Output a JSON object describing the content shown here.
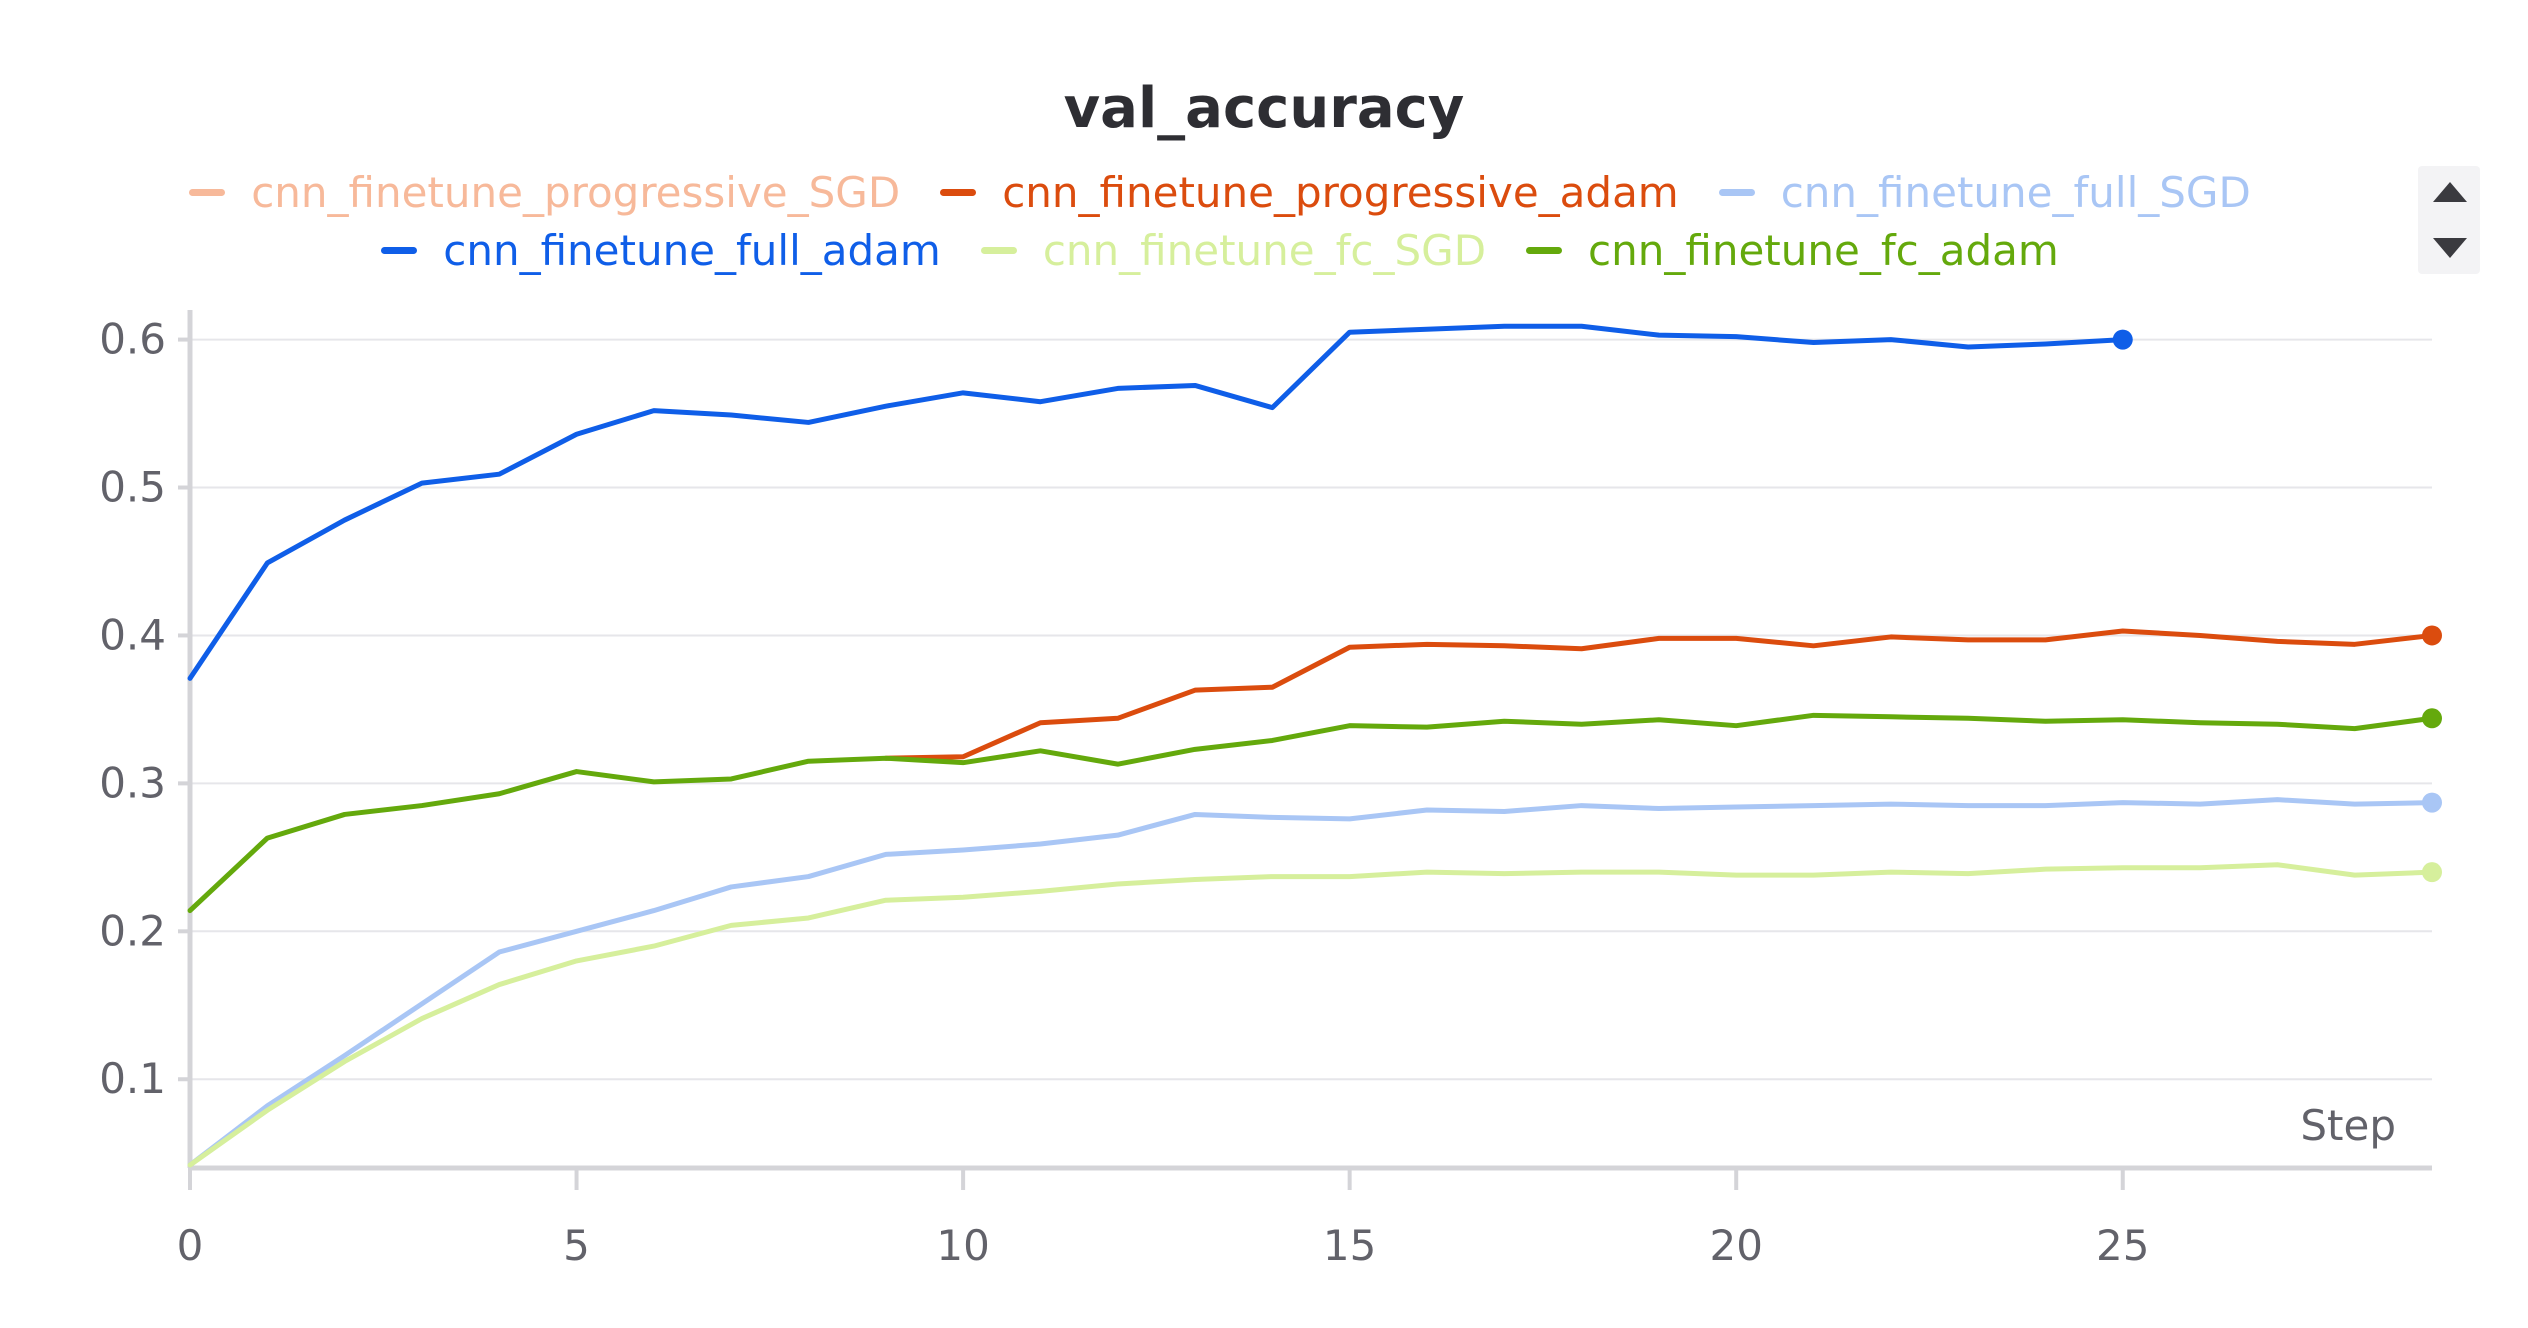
{
  "chart_data": {
    "type": "line",
    "title": "val_accuracy",
    "xlabel": "Step",
    "ylabel": "",
    "xlim": [
      0,
      29
    ],
    "ylim": [
      0.04,
      0.62
    ],
    "x_ticks": [
      0,
      5,
      10,
      15,
      20,
      25
    ],
    "y_ticks": [
      0.1,
      0.2,
      0.3,
      0.4,
      0.5,
      0.6
    ],
    "x_tick_labels": [
      "0",
      "5",
      "10",
      "15",
      "20",
      "25"
    ],
    "y_tick_labels": [
      "0.1",
      "0.2",
      "0.3",
      "0.4",
      "0.5",
      "0.6"
    ],
    "grid": true,
    "legend_position": "top",
    "series": [
      {
        "name": "cnn_finetune_progressive_SGD",
        "color": "#f7b99a",
        "x": [],
        "values": []
      },
      {
        "name": "cnn_finetune_progressive_adam",
        "color": "#db4c0e",
        "x": [
          9,
          10,
          11,
          12,
          13,
          14,
          15,
          16,
          17,
          18,
          19,
          20,
          21,
          22,
          23,
          24,
          25,
          26,
          27,
          28,
          29
        ],
        "values": [
          0.317,
          0.318,
          0.341,
          0.344,
          0.363,
          0.365,
          0.392,
          0.394,
          0.393,
          0.391,
          0.398,
          0.398,
          0.393,
          0.399,
          0.397,
          0.397,
          0.403,
          0.4,
          0.396,
          0.394,
          0.4
        ]
      },
      {
        "name": "cnn_finetune_full_SGD",
        "color": "#a9c6f5",
        "x": [
          0,
          1,
          2,
          3,
          4,
          5,
          6,
          7,
          8,
          9,
          10,
          11,
          12,
          13,
          14,
          15,
          16,
          17,
          18,
          19,
          20,
          21,
          22,
          23,
          24,
          25,
          26,
          27,
          28,
          29
        ],
        "values": [
          0.042,
          0.082,
          0.116,
          0.151,
          0.186,
          0.2,
          0.214,
          0.23,
          0.237,
          0.252,
          0.255,
          0.259,
          0.265,
          0.279,
          0.277,
          0.276,
          0.282,
          0.281,
          0.285,
          0.283,
          0.284,
          0.285,
          0.286,
          0.285,
          0.285,
          0.287,
          0.286,
          0.289,
          0.286,
          0.287
        ]
      },
      {
        "name": "cnn_finetune_full_adam",
        "color": "#0f5ee8",
        "x": [
          0,
          1,
          2,
          3,
          4,
          5,
          6,
          7,
          8,
          9,
          10,
          11,
          12,
          13,
          14,
          15,
          16,
          17,
          18,
          19,
          20,
          21,
          22,
          23,
          24,
          25
        ],
        "values": [
          0.371,
          0.449,
          0.478,
          0.503,
          0.509,
          0.536,
          0.552,
          0.549,
          0.544,
          0.555,
          0.564,
          0.558,
          0.567,
          0.569,
          0.554,
          0.605,
          0.607,
          0.609,
          0.609,
          0.603,
          0.602,
          0.598,
          0.6,
          0.595,
          0.597,
          0.6
        ]
      },
      {
        "name": "cnn_finetune_fc_SGD",
        "color": "#d6ef9c",
        "x": [
          0,
          1,
          2,
          3,
          4,
          5,
          6,
          7,
          8,
          9,
          10,
          11,
          12,
          13,
          14,
          15,
          16,
          17,
          18,
          19,
          20,
          21,
          22,
          23,
          24,
          25,
          26,
          27,
          28,
          29
        ],
        "values": [
          0.042,
          0.079,
          0.112,
          0.141,
          0.164,
          0.18,
          0.19,
          0.204,
          0.209,
          0.221,
          0.223,
          0.227,
          0.232,
          0.235,
          0.237,
          0.237,
          0.24,
          0.239,
          0.24,
          0.24,
          0.238,
          0.238,
          0.24,
          0.239,
          0.242,
          0.243,
          0.243,
          0.245,
          0.238,
          0.24
        ]
      },
      {
        "name": "cnn_finetune_fc_adam",
        "color": "#64a90c",
        "x": [
          0,
          1,
          2,
          3,
          4,
          5,
          6,
          7,
          8,
          9,
          10,
          11,
          12,
          13,
          14,
          15,
          16,
          17,
          18,
          19,
          20,
          21,
          22,
          23,
          24,
          25,
          26,
          27,
          28,
          29
        ],
        "values": [
          0.214,
          0.263,
          0.279,
          0.285,
          0.293,
          0.308,
          0.301,
          0.303,
          0.315,
          0.317,
          0.314,
          0.322,
          0.313,
          0.323,
          0.329,
          0.339,
          0.338,
          0.342,
          0.34,
          0.343,
          0.339,
          0.346,
          0.345,
          0.344,
          0.342,
          0.343,
          0.341,
          0.34,
          0.337,
          0.344
        ]
      }
    ]
  },
  "legend_controls": {
    "up_icon": "chevron-up-icon",
    "down_icon": "chevron-down-icon"
  }
}
